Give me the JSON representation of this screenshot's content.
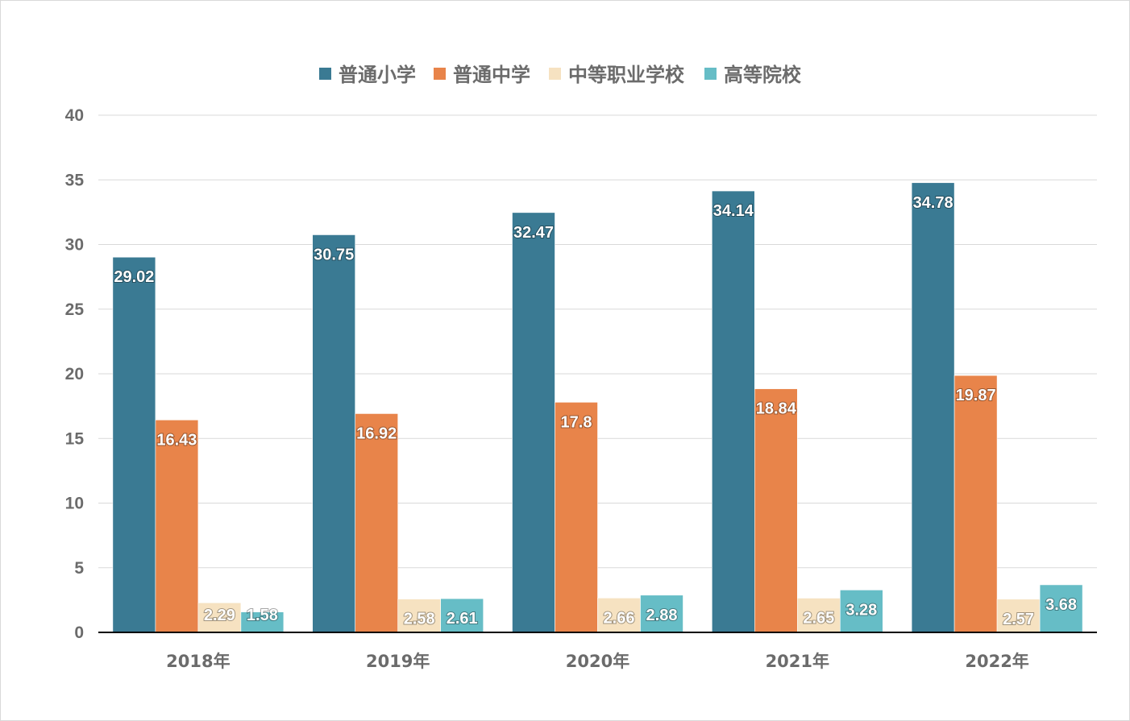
{
  "chart_data": {
    "type": "bar",
    "categories": [
      "2018年",
      "2019年",
      "2020年",
      "2021年",
      "2022年"
    ],
    "series": [
      {
        "name": "普通小学",
        "color": "#3a7a93",
        "values": [
          29.02,
          30.75,
          32.47,
          34.14,
          34.78
        ],
        "labels": [
          "29.02",
          "30.75",
          "32.47",
          "34.14",
          "34.78"
        ]
      },
      {
        "name": "普通中学",
        "color": "#e8844a",
        "values": [
          16.43,
          16.92,
          17.8,
          18.84,
          19.87
        ],
        "labels": [
          "16.43",
          "16.92",
          "17.8",
          "18.84",
          "19.87"
        ]
      },
      {
        "name": "中等职业学校",
        "color": "#f6e2c1",
        "values": [
          2.29,
          2.58,
          2.66,
          2.65,
          2.57
        ],
        "labels": [
          "2.29",
          "2.58",
          "2.66",
          "2.65",
          "2.57"
        ]
      },
      {
        "name": "高等院校",
        "color": "#66bdc6",
        "values": [
          1.58,
          2.61,
          2.88,
          3.28,
          3.68
        ],
        "labels": [
          "1.58",
          "2.61",
          "2.88",
          "3.28",
          "3.68"
        ]
      }
    ],
    "yticks": [
      "0",
      "5",
      "10",
      "15",
      "20",
      "25",
      "30",
      "35",
      "40"
    ],
    "ylim": [
      0,
      40
    ],
    "title": "",
    "xlabel": "",
    "ylabel": "",
    "grid": true,
    "legend_position": "top-center"
  }
}
